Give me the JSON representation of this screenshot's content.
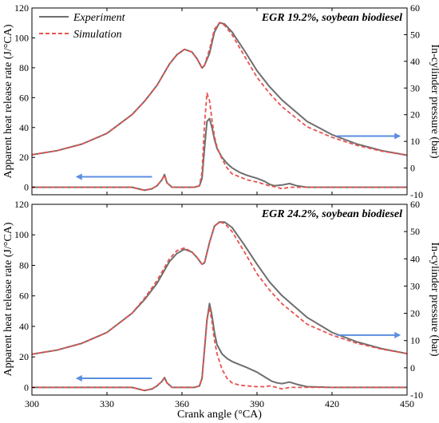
{
  "colors": {
    "experiment": "#6e6e6e",
    "simulation": "#e8534f",
    "arrow": "#5b8fe0"
  },
  "legend": {
    "experiment_label": "Experiment",
    "simulation_label": "Simulation"
  },
  "chart_data": [
    {
      "type": "line",
      "title": "EGR 19.2%, soybean biodiesel",
      "xlabel": "Crank angle (°CA)",
      "ylabel_left": "Apparent heat release rate (J/°CA)",
      "ylabel_right": "In-cylinder pressure (bar)",
      "xlim": [
        300,
        450
      ],
      "ylim_left": [
        -5,
        120
      ],
      "ylim_right": [
        -10,
        60
      ],
      "x_ticks": [
        300,
        330,
        360,
        390,
        420,
        450
      ],
      "y_left_ticks": [
        0,
        20,
        40,
        60,
        80,
        100,
        120
      ],
      "y_right_ticks": [
        -10,
        0,
        10,
        20,
        30,
        40,
        50,
        60
      ],
      "arrows": [
        {
          "axis": "left",
          "direction": "left",
          "x_from": 348,
          "x_to": 318,
          "y": 7
        },
        {
          "axis": "right",
          "direction": "right",
          "x_from": 422,
          "x_to": 447,
          "y": 12
        }
      ],
      "series": [
        {
          "name": "Experiment",
          "axis": "right",
          "quantity": "pressure",
          "x": [
            300,
            310,
            320,
            330,
            340,
            345,
            350,
            355,
            358,
            361,
            364,
            366,
            368,
            369,
            371,
            373,
            375,
            377,
            380,
            385,
            390,
            395,
            400,
            410,
            420,
            430,
            440,
            450
          ],
          "y": [
            5,
            6.5,
            9,
            13,
            20,
            25,
            31,
            39,
            42.5,
            44.5,
            43.5,
            41,
            37.5,
            38.5,
            43,
            51,
            54.5,
            54,
            51,
            44,
            36.5,
            30.5,
            25.5,
            17.5,
            12.5,
            9,
            6.5,
            4.8
          ]
        },
        {
          "name": "Experiment",
          "axis": "left",
          "quantity": "heat_release",
          "x": [
            300,
            320,
            340,
            345,
            348,
            350,
            352,
            353,
            354,
            356,
            360,
            365,
            367,
            368,
            369,
            370,
            371,
            372,
            373,
            374,
            376,
            378,
            380,
            383,
            386,
            390,
            393,
            395,
            397,
            400,
            403,
            406,
            410,
            420,
            430,
            440,
            450
          ],
          "y": [
            0,
            0,
            0,
            -2,
            -1,
            1,
            5,
            8.5,
            3,
            0,
            0,
            0,
            1,
            6,
            26,
            44,
            46,
            40,
            32,
            26,
            20,
            16,
            13,
            10,
            8,
            6,
            4,
            2,
            1,
            1.5,
            2.5,
            1,
            0,
            0,
            0,
            0,
            0
          ]
        },
        {
          "name": "Simulation",
          "axis": "right",
          "quantity": "pressure",
          "x": [
            300,
            310,
            320,
            330,
            340,
            345,
            350,
            355,
            358,
            361,
            364,
            366,
            368,
            369,
            371,
            373,
            375,
            377,
            380,
            385,
            390,
            395,
            400,
            410,
            420,
            430,
            440,
            450
          ],
          "y": [
            5,
            6.5,
            9,
            13,
            20,
            25,
            31,
            39,
            42.5,
            44.5,
            43.5,
            41,
            37.5,
            38.5,
            44.5,
            52,
            54.5,
            53.5,
            50,
            42,
            34,
            28,
            23,
            15.5,
            11.5,
            8.5,
            6.3,
            4.8
          ]
        },
        {
          "name": "Simulation",
          "axis": "left",
          "quantity": "heat_release",
          "x": [
            300,
            320,
            340,
            345,
            348,
            350,
            352,
            353,
            354,
            356,
            360,
            365,
            367,
            368,
            369,
            370,
            371,
            372,
            373,
            374,
            376,
            378,
            380,
            383,
            386,
            390,
            393,
            395,
            398,
            400,
            403,
            410,
            420,
            430,
            440,
            450
          ],
          "y": [
            0,
            0,
            0,
            -2,
            -1,
            1,
            5,
            8,
            3,
            0,
            0,
            0,
            1,
            10,
            42,
            63,
            58,
            45,
            34,
            27,
            19,
            13,
            9,
            7,
            5,
            3.5,
            2,
            1,
            0,
            -1,
            0,
            0,
            0,
            0,
            0,
            0
          ]
        }
      ]
    },
    {
      "type": "line",
      "title": "EGR 24.2%, soybean biodiesel",
      "xlabel": "Crank angle (°CA)",
      "ylabel_left": "Apparent heat release rate (J/°CA)",
      "ylabel_right": "In-cylinder pressure (bar)",
      "xlim": [
        300,
        450
      ],
      "ylim_left": [
        -5,
        120
      ],
      "ylim_right": [
        -10,
        60
      ],
      "x_ticks": [
        300,
        330,
        360,
        390,
        420,
        450
      ],
      "y_left_ticks": [
        0,
        20,
        40,
        60,
        80,
        100,
        120
      ],
      "y_right_ticks": [
        -10,
        0,
        10,
        20,
        30,
        40,
        50,
        60
      ],
      "arrows": [
        {
          "axis": "left",
          "direction": "left",
          "x_from": 348,
          "x_to": 318,
          "y": 6
        },
        {
          "axis": "right",
          "direction": "right",
          "x_from": 422,
          "x_to": 447,
          "y": 12
        }
      ],
      "series": [
        {
          "name": "Experiment",
          "axis": "right",
          "quantity": "pressure",
          "x": [
            300,
            310,
            320,
            330,
            340,
            345,
            350,
            355,
            358,
            361,
            364,
            366,
            368,
            369,
            371,
            373,
            375,
            377,
            380,
            385,
            390,
            395,
            400,
            410,
            420,
            430,
            440,
            450
          ],
          "y": [
            5,
            6.5,
            9,
            13,
            20,
            25,
            31,
            39,
            42,
            43.5,
            42.5,
            40.5,
            38,
            38.5,
            46,
            52,
            53.5,
            53.5,
            51.5,
            45,
            38,
            31.5,
            26.5,
            18.5,
            13,
            9.5,
            7,
            5.2
          ]
        },
        {
          "name": "Experiment",
          "axis": "left",
          "quantity": "heat_release",
          "x": [
            300,
            320,
            340,
            345,
            348,
            350,
            352,
            353,
            354,
            356,
            360,
            365,
            367,
            368,
            369,
            370,
            371,
            372,
            373,
            374,
            376,
            378,
            380,
            383,
            386,
            390,
            393,
            396,
            398,
            400,
            403,
            406,
            410,
            420,
            430,
            440,
            450
          ],
          "y": [
            0,
            0,
            0,
            -2,
            -1,
            1,
            4,
            6.5,
            3,
            0,
            0,
            0,
            1,
            6,
            25,
            44,
            55,
            47,
            36,
            28,
            22,
            19,
            17,
            15,
            13,
            10,
            7,
            4,
            3,
            2.5,
            3.5,
            2,
            0.5,
            0,
            0,
            0,
            0
          ]
        },
        {
          "name": "Simulation",
          "axis": "right",
          "quantity": "pressure",
          "x": [
            300,
            310,
            320,
            330,
            340,
            345,
            350,
            355,
            358,
            361,
            364,
            366,
            368,
            369,
            371,
            373,
            375,
            377,
            380,
            385,
            390,
            395,
            400,
            410,
            420,
            430,
            440,
            450
          ],
          "y": [
            5,
            6.5,
            9,
            13,
            20,
            25.5,
            32,
            40,
            43,
            44,
            42.5,
            40.5,
            38,
            38.5,
            46,
            52,
            53.5,
            53,
            50,
            42.5,
            34.5,
            28.5,
            23.5,
            16,
            12,
            9,
            6.8,
            5.2
          ]
        },
        {
          "name": "Simulation",
          "axis": "left",
          "quantity": "heat_release",
          "x": [
            300,
            320,
            340,
            345,
            348,
            350,
            352,
            353,
            354,
            356,
            360,
            365,
            367,
            368,
            369,
            370,
            371,
            372,
            373,
            374,
            376,
            378,
            380,
            383,
            386,
            390,
            393,
            395,
            398,
            400,
            403,
            410,
            420,
            430,
            440,
            450
          ],
          "y": [
            0,
            0,
            0,
            -2,
            -1,
            1,
            4,
            6,
            3,
            0,
            0,
            0,
            1,
            6,
            24,
            45,
            52,
            43,
            31,
            22,
            12,
            6,
            3,
            1.5,
            1,
            0.5,
            0.5,
            1,
            0,
            -1,
            0,
            0,
            0,
            0,
            0,
            0
          ]
        }
      ]
    }
  ]
}
